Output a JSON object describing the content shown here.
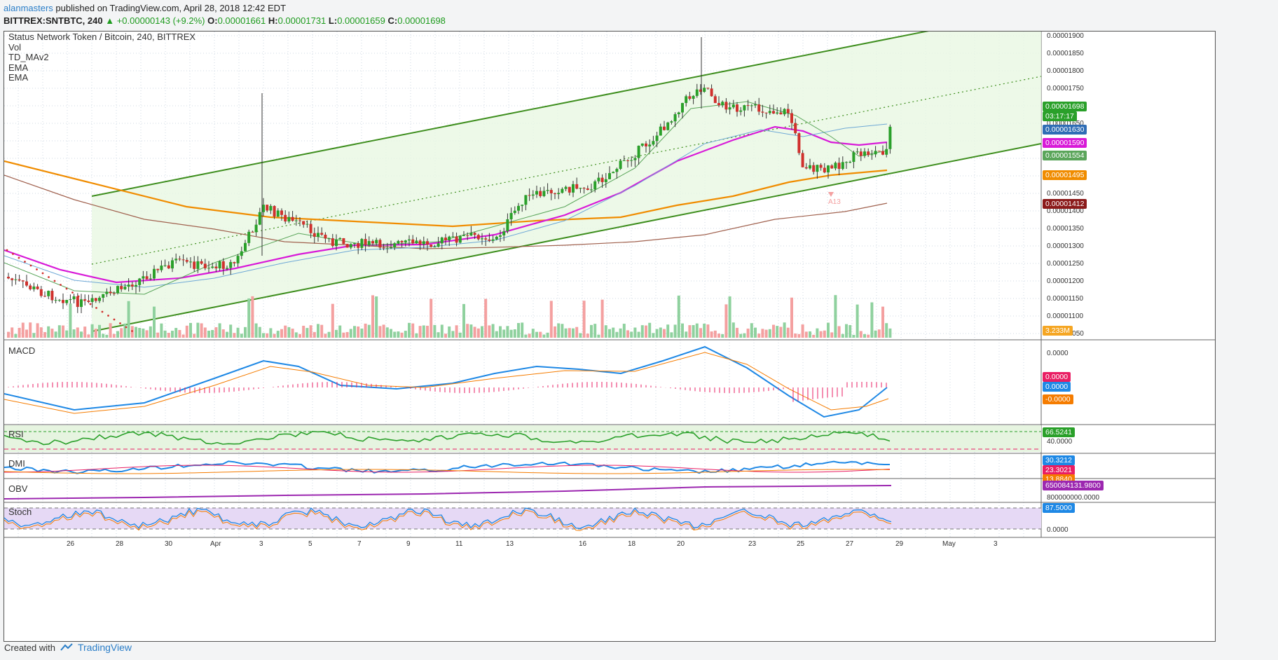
{
  "header": {
    "author": "alanmasters",
    "published": " published on TradingView.com, April 28, 2018 12:42 EDT",
    "symbol": "BITTREX:SNTBTC, 240",
    "change": "+0.00000143 (+9.2%)",
    "o_label": "O:",
    "o": "0.00001661",
    "h_label": "H:",
    "h": "0.00001731",
    "l_label": "L:",
    "l": "0.00001659",
    "c_label": "C:",
    "c": "0.00001698"
  },
  "legend": {
    "title": "Status Network Token / Bitcoin, 240, BITTREX",
    "items": [
      "Vol",
      "TD_MAv2",
      "EMA",
      "EMA"
    ]
  },
  "panes": {
    "macd": "MACD",
    "rsi": "RSI",
    "dmi": "DMI",
    "obv": "OBV",
    "stoch": "Stoch"
  },
  "price_axis": [
    "0.00001900",
    "0.00001850",
    "0.00001800",
    "0.00001750",
    "0.00001700",
    "0.00001650",
    "0.00001600",
    "0.00001550",
    "0.00001500",
    "0.00001450",
    "0.00001400",
    "0.00001350",
    "0.00001300",
    "0.00001250",
    "0.00001200",
    "0.00001150",
    "0.00001100",
    "0.00001050"
  ],
  "price_tags": [
    {
      "text": "0.00001698",
      "color": "#2aa02a"
    },
    {
      "text": "03:17:17",
      "color": "#2aa02a"
    },
    {
      "text": "0.00001630",
      "color": "#2f6db5"
    },
    {
      "text": "0.00001590",
      "color": "#d81ad8"
    },
    {
      "text": "0.00001554",
      "color": "#5aa55a"
    },
    {
      "text": "0.00001495",
      "color": "#f08c00"
    },
    {
      "text": "0.00001412",
      "color": "#8b1a1a"
    }
  ],
  "vol_tag": "3.233M",
  "macd_axis": "0.0000",
  "macd_tags": [
    {
      "text": "0.0000",
      "color": "#e91e63"
    },
    {
      "text": "0.0000",
      "color": "#1e88e5"
    },
    {
      "text": "-0.0000",
      "color": "#f57c00"
    }
  ],
  "rsi_tag": "66.5241",
  "rsi_axis": "40.0000",
  "dmi_tags": [
    {
      "text": "30.3212",
      "color": "#1e88e5"
    },
    {
      "text": "23.3021",
      "color": "#e91e63"
    },
    {
      "text": "13.8840",
      "color": "#f57c00"
    }
  ],
  "obv_tag": "650084131.9800",
  "obv_axis": "800000000.0000",
  "stoch_tag": "87.5000",
  "stoch_axis": "0.0000",
  "marker_label": "A13",
  "x_axis": [
    "26",
    "28",
    "30",
    "Apr",
    "3",
    "5",
    "7",
    "9",
    "11",
    "13",
    "16",
    "18",
    "20",
    "23",
    "25",
    "27",
    "29",
    "May",
    "3"
  ],
  "footer": {
    "created": "Created with",
    "brand": "TradingView"
  },
  "colors": {
    "up": "#2aa02a",
    "down": "#d0312d",
    "channel": "#3e8e1e",
    "ema_orange": "#f08c00",
    "ema_magenta": "#d81ad8",
    "ema_blue": "#6ea8d6",
    "ema_brown": "#a0614e"
  }
}
